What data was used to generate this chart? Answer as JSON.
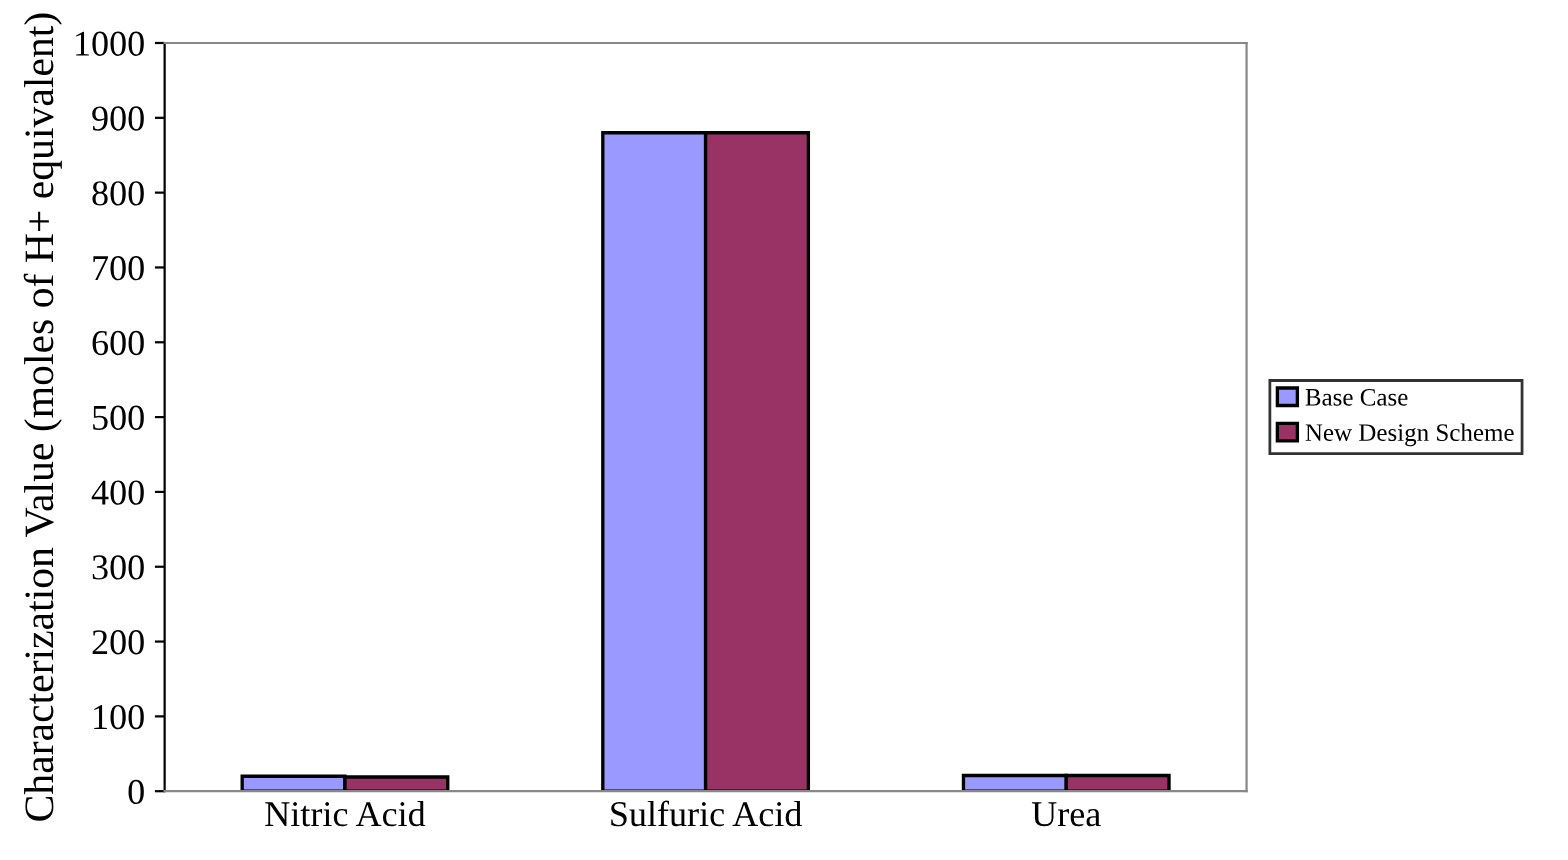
{
  "chart_data": {
    "type": "bar",
    "ylabel": "Characterization Value (moles of H+ equivalent)",
    "categories": [
      "Nitric Acid",
      "Sulfuric Acid",
      "Urea"
    ],
    "series": [
      {
        "name": "Base Case",
        "color": "#9999ff",
        "values": [
          20,
          880,
          21
        ]
      },
      {
        "name": "New Design Scheme",
        "color": "#993366",
        "values": [
          19,
          880,
          21
        ]
      }
    ],
    "ylim": [
      0,
      1000
    ],
    "yticks": [
      0,
      100,
      200,
      300,
      400,
      500,
      600,
      700,
      800,
      900,
      1000
    ],
    "grid": false,
    "legend": "right"
  }
}
